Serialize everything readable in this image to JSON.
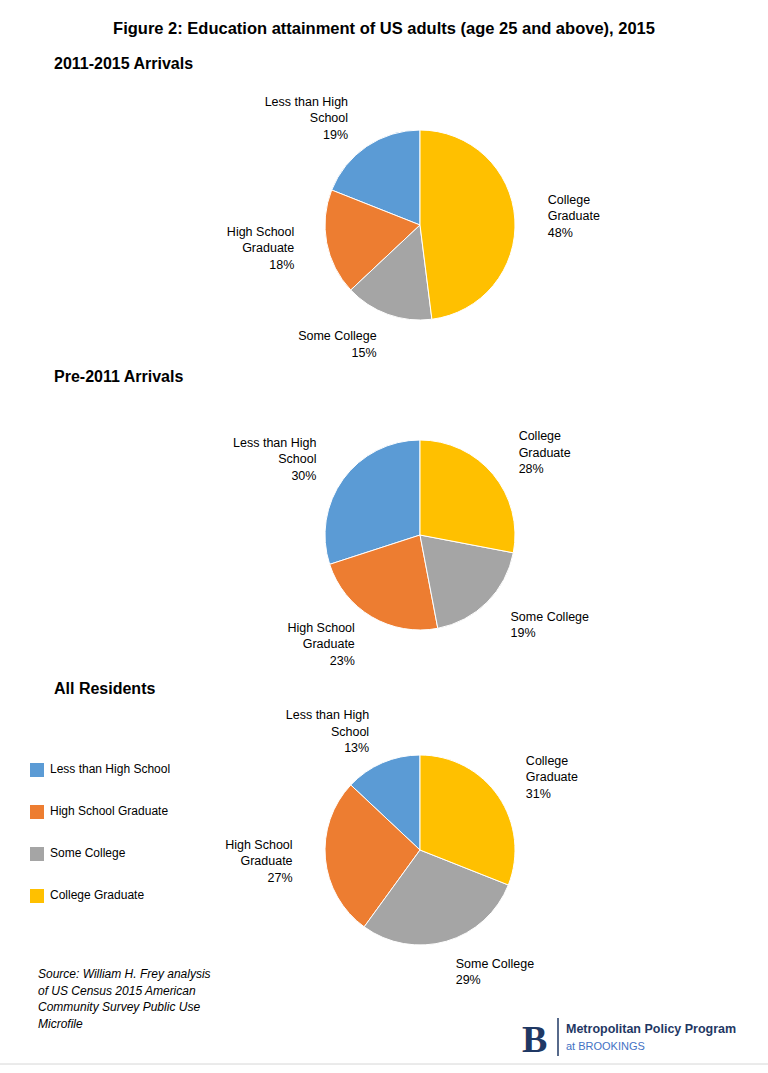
{
  "chart_data": [
    {
      "type": "pie",
      "title": "Figure 2: Education attainment of US adults (age 25 and above), 2015",
      "subtitle": "2011-2015 Arrivals",
      "categories": [
        "Less than High\nSchool",
        "High School\nGraduate",
        "Some College",
        "College\nGraduate"
      ],
      "values": [
        19,
        18,
        15,
        48
      ],
      "value_labels": [
        "19%",
        "18%",
        "15%",
        "48%"
      ],
      "colors": [
        "#5B9BD5",
        "#ED7D31",
        "#A5A5A5",
        "#FFC000"
      ],
      "data_labels": true
    },
    {
      "type": "pie",
      "subtitle": "Pre-2011 Arrivals",
      "categories": [
        "Less than High\nSchool",
        "High School\nGraduate",
        "Some College",
        "College\nGraduate"
      ],
      "values": [
        30,
        23,
        19,
        28
      ],
      "value_labels": [
        "30%",
        "23%",
        "19%",
        "28%"
      ],
      "colors": [
        "#5B9BD5",
        "#ED7D31",
        "#A5A5A5",
        "#FFC000"
      ],
      "data_labels": true
    },
    {
      "type": "pie",
      "subtitle": "All Residents",
      "categories": [
        "Less than High\nSchool",
        "High School\nGraduate",
        "Some College",
        "College\nGraduate"
      ],
      "values": [
        13,
        27,
        29,
        31
      ],
      "value_labels": [
        "13%",
        "27%",
        "29%",
        "31%"
      ],
      "colors": [
        "#5B9BD5",
        "#ED7D31",
        "#A5A5A5",
        "#FFC000"
      ],
      "data_labels": true,
      "legend": "left",
      "annotations": [
        "Source: William H. Frey analysis\nof US Census 2015 American\nCommunity Survey Public Use\nMicrofile",
        "B",
        "Metropolitan Policy Program",
        "at BROOKINGS"
      ]
    }
  ]
}
